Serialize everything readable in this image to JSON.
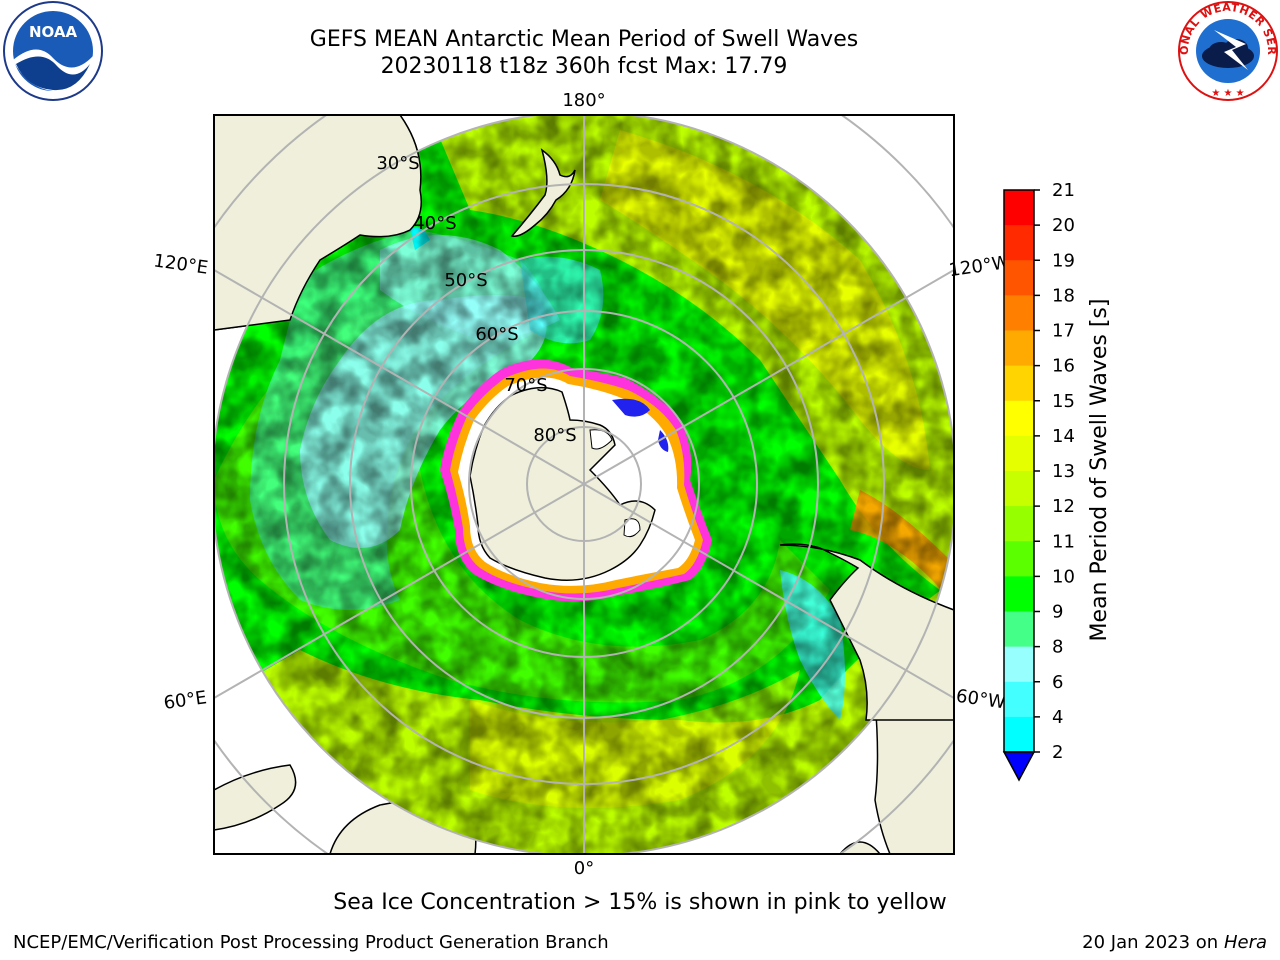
{
  "header": {
    "title_line1": "GEFS MEAN Antarctic Mean Period of Swell Waves",
    "title_line2": "20230118 t18z 360h fcst   Max: 17.79"
  },
  "logos": {
    "left": {
      "icon": "noaa-logo-icon",
      "text": "NOAA"
    },
    "right": {
      "icon": "nws-logo-icon",
      "text": "NATIONAL WEATHER SERVICE"
    }
  },
  "map": {
    "projection": "south-polar-stereographic",
    "longitude_labels": [
      "180°",
      "120°E",
      "120°W",
      "60°E",
      "60°W",
      "0°"
    ],
    "latitude_labels": [
      "30°S",
      "40°S",
      "50°S",
      "60°S",
      "70°S",
      "80°S"
    ],
    "land_color": "#efefdb",
    "ocean_field_colors": [
      "#00ff00",
      "#5cff00",
      "#c8ff00",
      "#f0ff00",
      "#44ff88",
      "#98ffff",
      "#44ffff",
      "#ff9900"
    ],
    "sea_ice_colors": [
      "#ff33dd",
      "#ffaa00",
      "#ffee66",
      "#2222ee"
    ]
  },
  "colorbar": {
    "label": "Mean Period of Swell Waves [s]",
    "ticks": [
      "21",
      "20",
      "19",
      "18",
      "17",
      "16",
      "15",
      "14",
      "13",
      "12",
      "11",
      "10",
      "9",
      "8",
      "6",
      "4",
      "2"
    ],
    "colors": [
      "#ff0000",
      "#ff2a00",
      "#ff5500",
      "#ff8000",
      "#ffaa00",
      "#ffd400",
      "#ffff00",
      "#e6ff00",
      "#c8ff00",
      "#96ff00",
      "#5cff00",
      "#00ff00",
      "#44ff88",
      "#98ffff",
      "#44ffff",
      "#00ffff",
      "#007fff",
      "#0000ff"
    ]
  },
  "notes": {
    "sea_ice": "Sea Ice Concentration > 15% is shown in pink to yellow"
  },
  "footer": {
    "left": "NCEP/EMC/Verification Post Processing Product Generation Branch",
    "right_date": "20 Jan 2023 on ",
    "right_machine": "Hera"
  }
}
